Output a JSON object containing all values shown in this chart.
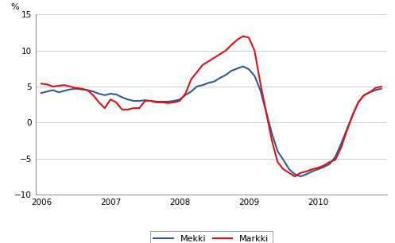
{
  "title": "",
  "ylabel": "%",
  "ylim": [
    -10,
    15
  ],
  "yticks": [
    -10,
    -5,
    0,
    5,
    10,
    15
  ],
  "xlabel_years": [
    "2006",
    "2007",
    "2008",
    "2009",
    "2010"
  ],
  "mekki_color": "#2e5a9c",
  "markki_color": "#dd1111",
  "linewidth": 1.5,
  "background_color": "#ffffff",
  "mekki": [
    4.1,
    4.3,
    4.5,
    4.2,
    4.4,
    4.6,
    4.7,
    4.6,
    4.5,
    4.3,
    4.0,
    3.8,
    4.0,
    3.9,
    3.5,
    3.2,
    3.0,
    3.0,
    3.1,
    3.0,
    2.9,
    2.9,
    2.9,
    3.0,
    3.2,
    3.8,
    4.3,
    5.0,
    5.2,
    5.5,
    5.7,
    6.2,
    6.6,
    7.2,
    7.5,
    7.8,
    7.4,
    6.5,
    4.5,
    1.5,
    -1.5,
    -4.0,
    -5.2,
    -6.5,
    -7.2,
    -7.5,
    -7.2,
    -6.8,
    -6.5,
    -6.2,
    -5.8,
    -4.8,
    -3.0,
    -1.0,
    1.0,
    2.8,
    3.8,
    4.2,
    4.5,
    4.7
  ],
  "markki": [
    5.4,
    5.3,
    5.0,
    5.1,
    5.2,
    5.0,
    4.8,
    4.7,
    4.5,
    3.8,
    2.8,
    2.0,
    3.2,
    2.8,
    1.8,
    1.8,
    2.0,
    2.0,
    3.0,
    3.0,
    2.8,
    2.8,
    2.7,
    2.8,
    3.0,
    4.0,
    6.0,
    7.0,
    8.0,
    8.5,
    9.0,
    9.5,
    10.0,
    10.8,
    11.5,
    12.0,
    11.8,
    10.0,
    5.5,
    1.5,
    -2.5,
    -5.5,
    -6.5,
    -7.0,
    -7.5,
    -7.0,
    -6.8,
    -6.5,
    -6.3,
    -6.0,
    -5.5,
    -5.2,
    -3.5,
    -1.2,
    1.0,
    2.8,
    3.8,
    4.2,
    4.8,
    5.0
  ]
}
